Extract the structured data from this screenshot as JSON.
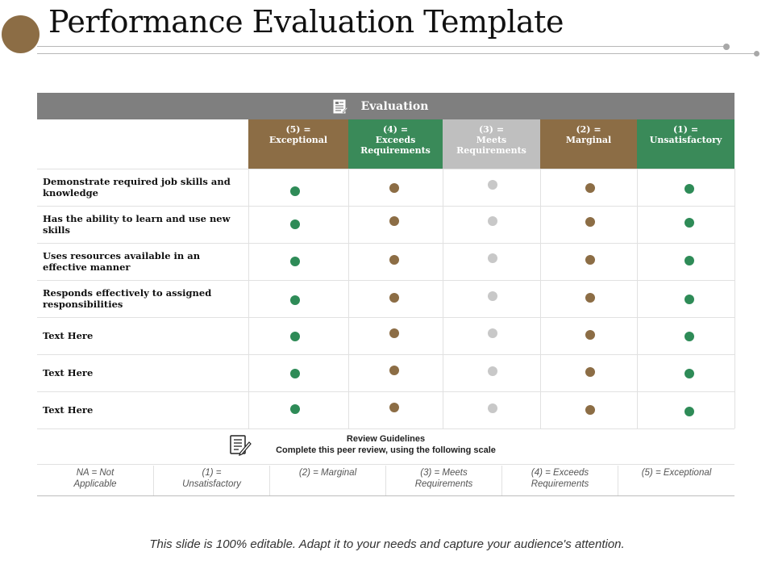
{
  "slide_title": "Performance Evaluation Template",
  "evaluation_label": "Evaluation",
  "columns": [
    {
      "score": "(5) =",
      "label": "Exceptional",
      "color": "#8c6d45"
    },
    {
      "score": "(4) =",
      "label": "Exceeds Requirements",
      "color": "#3a8a59"
    },
    {
      "score": "(3) =",
      "label": "Meets Requirements",
      "color": "#bfbfbf"
    },
    {
      "score": "(2) =",
      "label": "Marginal",
      "color": "#8c6d45"
    },
    {
      "score": "(1) =",
      "label": "Unsatisfactory",
      "color": "#3a8a59"
    }
  ],
  "dot_colors": [
    "#2e8b57",
    "#8c6d45",
    "#c8c8c8",
    "#8c6d45",
    "#2e8b57"
  ],
  "criteria": [
    "Demonstrate required job skills and knowledge",
    "Has the ability to learn and use new skills",
    "Uses resources available in an effective manner",
    "Responds effectively to assigned responsibilities",
    "Text Here",
    "Text Here",
    "Text Here"
  ],
  "review_guidelines": {
    "title": "Review Guidelines",
    "subtitle": "Complete this peer review, using the following scale"
  },
  "scale": [
    "NA = Not Applicable",
    "(1) = Unsatisfactory",
    "(2) = Marginal",
    "(3) = Meets Requirements",
    "(4) = Exceeds Requirements",
    "(5) = Exceptional"
  ],
  "footer": "This slide is 100% editable. Adapt it to your needs and capture your audience's attention."
}
